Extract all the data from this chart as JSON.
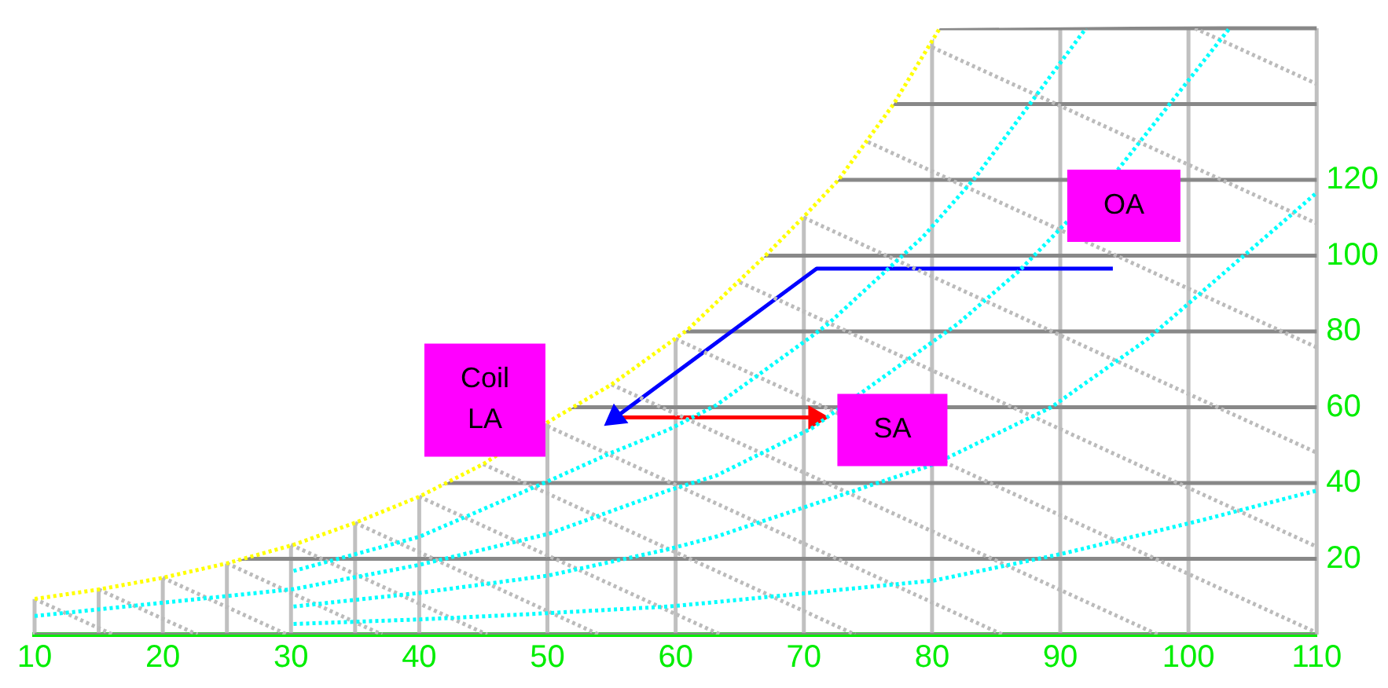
{
  "chart_data": {
    "type": "line",
    "xlim": [
      10,
      110
    ],
    "xticks": [
      10,
      {
        "value": 15,
        "label": null
      },
      20,
      {
        "value": 25,
        "label": null
      },
      30,
      {
        "value": 35,
        "label": null
      },
      40,
      50,
      60,
      70,
      80,
      90,
      100,
      110
    ],
    "ylim": [
      0,
      160
    ],
    "yticks": [
      {
        "value": 0,
        "label": null
      },
      20,
      40,
      60,
      80,
      100,
      120,
      {
        "value": 140,
        "label": null
      },
      {
        "value": 160,
        "label": null
      }
    ],
    "grid": true,
    "series": [
      {
        "color": "#ffff00",
        "line_style": "dotted",
        "x": [
          10,
          15,
          20,
          25,
          30.2,
          35,
          40,
          45,
          50,
          55,
          61,
          67,
          70.2,
          72.7,
          77,
          80.6
        ],
        "values": [
          9.4,
          11.9,
          15,
          18.8,
          23.7,
          29.5,
          36.4,
          45,
          56,
          66,
          80.6,
          100,
          111,
          120,
          140,
          160
        ]
      },
      {
        "color": "#00ffff",
        "line_style": "dotted",
        "x": [
          30.2,
          40,
          50.4,
          55,
          59.4,
          63.2,
          70.2,
          71.9,
          79.3,
          83.4,
          92
        ],
        "values": [
          16.8,
          25.8,
          41,
          48,
          54,
          60.6,
          77.7,
          82,
          105,
          120.7,
          160
        ]
      },
      {
        "color": "#00ffff",
        "line_style": "dotted",
        "x": [
          10,
          30.2,
          40,
          50.1,
          59.4,
          63.2,
          70.6,
          82,
          86.8,
          94.5,
          103.2
        ],
        "values": [
          4.9,
          12,
          18.4,
          26.6,
          38,
          42,
          54.4,
          82,
          96,
          122.7,
          160
        ]
      },
      {
        "color": "#00ffff",
        "line_style": "dotted",
        "x": [
          30.2,
          40,
          50.1,
          59.4,
          63.2,
          80.2,
          89.3,
          96.7,
          110
        ],
        "values": [
          7.4,
          11,
          15.6,
          22.5,
          25.9,
          45,
          60,
          77.7,
          116.6
        ]
      },
      {
        "color": "#00ffff",
        "line_style": "dotted",
        "x": [
          30.2,
          40,
          48.6,
          59.4,
          63.2,
          80.2,
          90.1,
          100.8,
          110
        ],
        "values": [
          2.8,
          4,
          5.4,
          7.4,
          8.6,
          14.3,
          21.3,
          30,
          38
        ]
      },
      {
        "color": "#bbbbbb",
        "line_style": "dotted",
        "x": [
          10,
          16.1
        ],
        "values": [
          9.4,
          0
        ]
      },
      {
        "color": "#bbbbbb",
        "line_style": "dotted",
        "x": [
          15,
          22.7
        ],
        "values": [
          11.9,
          0
        ]
      },
      {
        "color": "#bbbbbb",
        "line_style": "dotted",
        "x": [
          20,
          29.7
        ],
        "values": [
          15,
          0
        ]
      },
      {
        "color": "#bbbbbb",
        "line_style": "dotted",
        "x": [
          25,
          37.1
        ],
        "values": [
          18.8,
          0
        ]
      },
      {
        "color": "#bbbbbb",
        "line_style": "dotted",
        "x": [
          30,
          45.3
        ],
        "values": [
          23.7,
          0
        ]
      },
      {
        "color": "#bbbbbb",
        "line_style": "dotted",
        "x": [
          35,
          54
        ],
        "values": [
          29.5,
          0
        ]
      },
      {
        "color": "#bbbbbb",
        "line_style": "dotted",
        "x": [
          40,
          63.5
        ],
        "values": [
          36.4,
          0
        ]
      },
      {
        "color": "#bbbbbb",
        "line_style": "dotted",
        "x": [
          45,
          74
        ],
        "values": [
          45,
          0
        ]
      },
      {
        "color": "#bbbbbb",
        "line_style": "dotted",
        "x": [
          50,
          85.5
        ],
        "values": [
          55,
          0
        ]
      },
      {
        "color": "#bbbbbb",
        "line_style": "dotted",
        "x": [
          55,
          97.6
        ],
        "values": [
          66,
          0
        ]
      },
      {
        "color": "#bbbbbb",
        "line_style": "dotted",
        "x": [
          60,
          110
        ],
        "values": [
          78,
          0.5
        ]
      },
      {
        "color": "#bbbbbb",
        "line_style": "dotted",
        "x": [
          65,
          110
        ],
        "values": [
          93,
          23.2
        ]
      },
      {
        "color": "#bbbbbb",
        "line_style": "dotted",
        "x": [
          70,
          110
        ],
        "values": [
          110,
          48
        ]
      },
      {
        "color": "#bbbbbb",
        "line_style": "dotted",
        "x": [
          75,
          110
        ],
        "values": [
          130,
          75.8
        ]
      },
      {
        "color": "#bbbbbb",
        "line_style": "dotted",
        "x": [
          80,
          110
        ],
        "values": [
          155,
          108.5
        ]
      },
      {
        "color": "#bbbbbb",
        "line_style": "dotted",
        "x": [
          100.5,
          110
        ],
        "values": [
          160,
          145.3
        ]
      },
      {
        "color": "#0000ff",
        "line_style": "solid",
        "x": [
          94.1,
          71,
          55.3
        ],
        "values": [
          96.6,
          96.6,
          57.3
        ]
      },
      {
        "color": "#ff0000",
        "line_style": "solid",
        "x": [
          55.3,
          70.9
        ],
        "values": [
          57.3,
          57.3
        ]
      }
    ],
    "annotations": [
      "OA",
      "Coil LA",
      "SA"
    ]
  }
}
